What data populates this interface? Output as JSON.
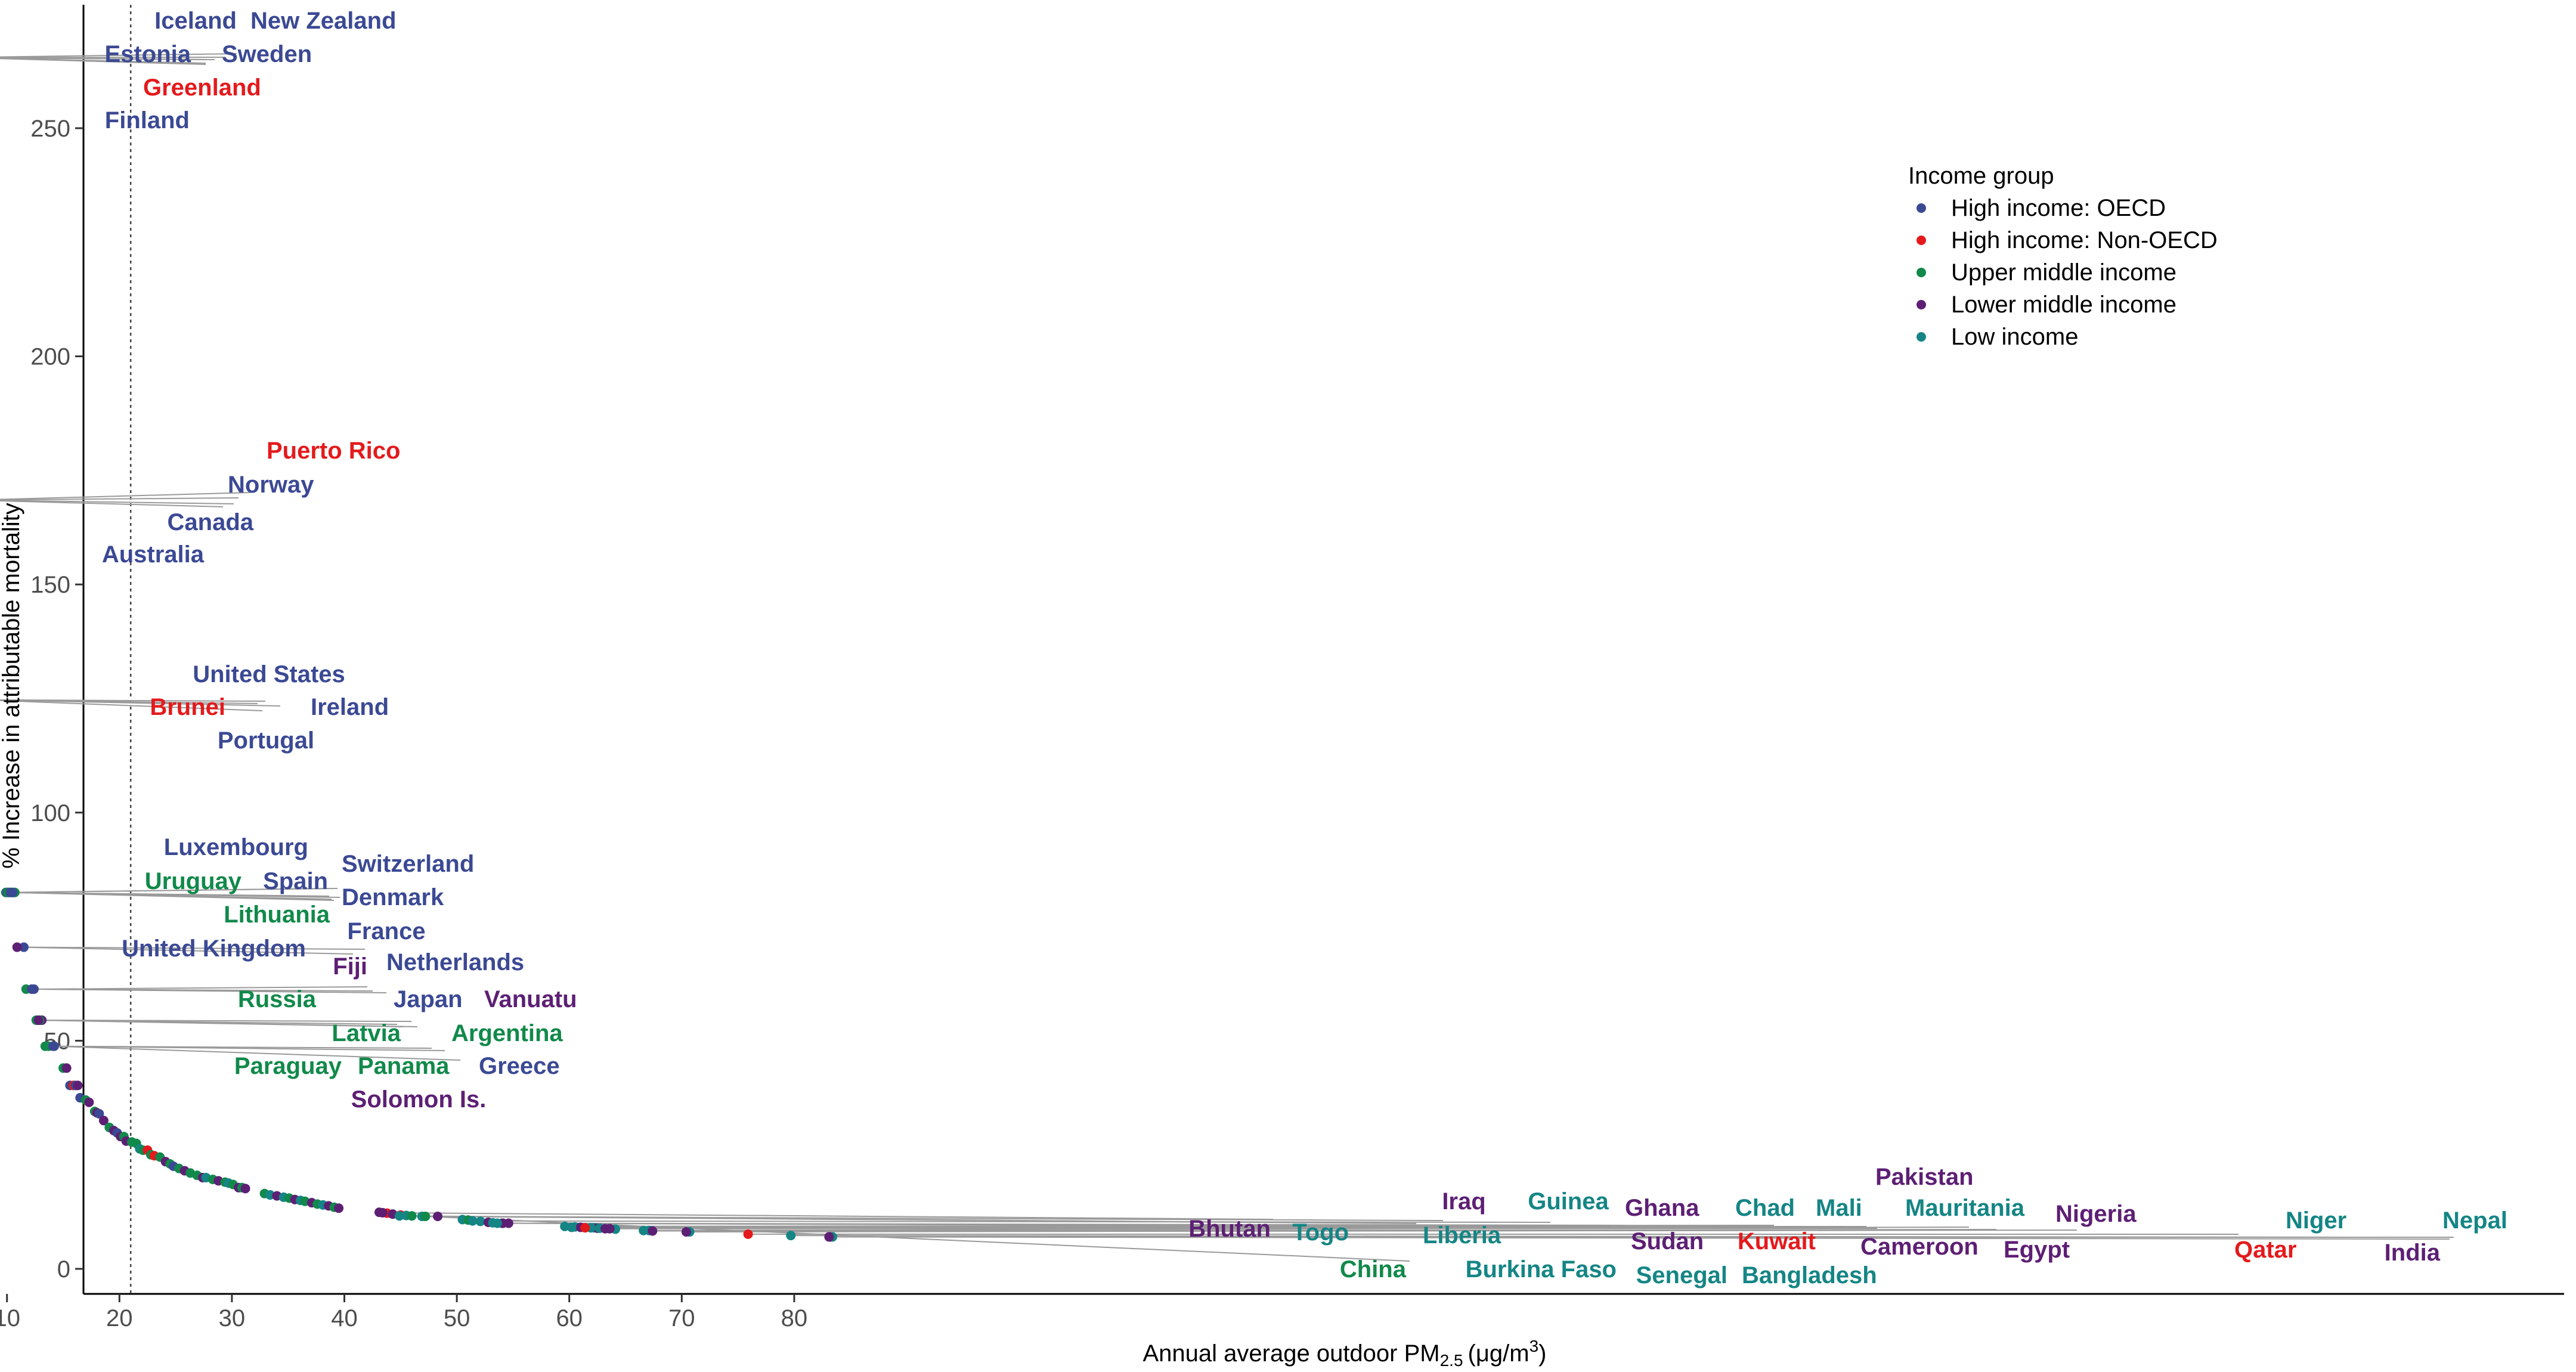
{
  "chart_data": {
    "type": "scatter",
    "title": "",
    "xlabel": "Annual average outdoor PM",
    "xlabel_sub": "2.5",
    "xlabel_unit": "(μg/m",
    "xlabel_unit_sup": "3",
    "xlabel_unit_close": ")",
    "ylabel": "% Increase in attributable mortality",
    "xlim": [
      1,
      86
    ],
    "ylim": [
      -6,
      278
    ],
    "x_ticks": [
      10,
      20,
      30,
      40,
      50,
      60,
      70,
      80
    ],
    "y_ticks": [
      0,
      50,
      100,
      150,
      200,
      250
    ],
    "reference_line_x": 21,
    "grid": false,
    "legend": {
      "title": "Income group",
      "placement": "top-right",
      "entries": [
        {
          "key": "oecd",
          "label": "High income: OECD",
          "color": "#3b4994"
        },
        {
          "key": "nonoecd",
          "label": "High income: Non-OECD",
          "color": "#e41a1c"
        },
        {
          "key": "upper",
          "label": "Upper middle income",
          "color": "#11894a"
        },
        {
          "key": "lower",
          "label": "Lower middle income",
          "color": "#5d1f74"
        },
        {
          "key": "low",
          "label": "Low income",
          "color": "#158585"
        }
      ]
    },
    "labeled_points": [
      {
        "name": "Iceland",
        "group": "oecd",
        "x": 6.0,
        "y": 265.5
      },
      {
        "name": "New Zealand",
        "group": "oecd",
        "x": 6.6,
        "y": 265.5
      },
      {
        "name": "Estonia",
        "group": "oecd",
        "x": 5.6,
        "y": 265.5
      },
      {
        "name": "Sweden",
        "group": "oecd",
        "x": 6.4,
        "y": 265.5
      },
      {
        "name": "Greenland",
        "group": "nonoecd",
        "x": 6.2,
        "y": 265.5
      },
      {
        "name": "Finland",
        "group": "oecd",
        "x": 5.8,
        "y": 265.5
      },
      {
        "name": "Puerto Rico",
        "group": "nonoecd",
        "x": 7.3,
        "y": 168.5
      },
      {
        "name": "Norway",
        "group": "oecd",
        "x": 7.0,
        "y": 168.5
      },
      {
        "name": "Canada",
        "group": "oecd",
        "x": 6.9,
        "y": 168.5
      },
      {
        "name": "Australia",
        "group": "oecd",
        "x": 6.6,
        "y": 168.5
      },
      {
        "name": "United States",
        "group": "oecd",
        "x": 8.1,
        "y": 124.7
      },
      {
        "name": "Brunei",
        "group": "nonoecd",
        "x": 8.0,
        "y": 124.7
      },
      {
        "name": "Ireland",
        "group": "oecd",
        "x": 8.3,
        "y": 124.7
      },
      {
        "name": "Portugal",
        "group": "oecd",
        "x": 7.9,
        "y": 124.7
      },
      {
        "name": "Luxembourg",
        "group": "oecd",
        "x": 10.2,
        "y": 82.5
      },
      {
        "name": "Switzerland",
        "group": "oecd",
        "x": 10.4,
        "y": 82.5
      },
      {
        "name": "Uruguay",
        "group": "upper",
        "x": 9.9,
        "y": 82.5
      },
      {
        "name": "Spain",
        "group": "oecd",
        "x": 10.0,
        "y": 82.5
      },
      {
        "name": "Denmark",
        "group": "oecd",
        "x": 10.5,
        "y": 82.5
      },
      {
        "name": "Lithuania",
        "group": "upper",
        "x": 10.1,
        "y": 82.5
      },
      {
        "name": "United Kingdom",
        "group": "oecd",
        "x": 10.3,
        "y": 82.5
      },
      {
        "name": "France",
        "group": "oecd",
        "x": 11.5,
        "y": 70.5
      },
      {
        "name": "Fiji",
        "group": "lower",
        "x": 10.9,
        "y": 70.5
      },
      {
        "name": "Netherlands",
        "group": "oecd",
        "x": 12.4,
        "y": 61.3
      },
      {
        "name": "Russia",
        "group": "upper",
        "x": 11.7,
        "y": 61.3
      },
      {
        "name": "Japan",
        "group": "oecd",
        "x": 12.2,
        "y": 61.3
      },
      {
        "name": "Vanuatu",
        "group": "lower",
        "x": 13.1,
        "y": 54.5
      },
      {
        "name": "Latvia",
        "group": "upper",
        "x": 12.6,
        "y": 54.5
      },
      {
        "name": "Argentina",
        "group": "upper",
        "x": 13.4,
        "y": 48.8
      },
      {
        "name": "Paraguay",
        "group": "upper",
        "x": 12.9,
        "y": 54.5
      },
      {
        "name": "Panama",
        "group": "upper",
        "x": 13.7,
        "y": 48.8
      },
      {
        "name": "Greece",
        "group": "oecd",
        "x": 14.1,
        "y": 48.8
      },
      {
        "name": "Solomon Is.",
        "group": "lower",
        "x": 12.8,
        "y": 54.5
      },
      {
        "name": "Bhutan",
        "group": "lower",
        "x": 43.4,
        "y": 12.3
      },
      {
        "name": "Togo",
        "group": "low",
        "x": 44.9,
        "y": 11.6
      },
      {
        "name": "Iraq",
        "group": "lower",
        "x": 48.3,
        "y": 11.5
      },
      {
        "name": "Liberia",
        "group": "low",
        "x": 46.9,
        "y": 11.5
      },
      {
        "name": "China",
        "group": "upper",
        "x": 47.2,
        "y": 11.5
      },
      {
        "name": "Guinea",
        "group": "low",
        "x": 51.4,
        "y": 10.5
      },
      {
        "name": "Ghana",
        "group": "lower",
        "x": 54.6,
        "y": 10.0
      },
      {
        "name": "Sudan",
        "group": "lower",
        "x": 54.1,
        "y": 10.0
      },
      {
        "name": "Burkina Faso",
        "group": "low",
        "x": 53.6,
        "y": 10.0
      },
      {
        "name": "Chad",
        "group": "low",
        "x": 59.6,
        "y": 9.3
      },
      {
        "name": "Mali",
        "group": "low",
        "x": 61.9,
        "y": 9.0
      },
      {
        "name": "Kuwait",
        "group": "nonoecd",
        "x": 61.4,
        "y": 9.0
      },
      {
        "name": "Senegal",
        "group": "low",
        "x": 60.2,
        "y": 9.1
      },
      {
        "name": "Bangladesh",
        "group": "low",
        "x": 62.7,
        "y": 8.9
      },
      {
        "name": "Pakistan",
        "group": "lower",
        "x": 63.2,
        "y": 8.8
      },
      {
        "name": "Mauritania",
        "group": "low",
        "x": 66.6,
        "y": 8.4
      },
      {
        "name": "Cameroon",
        "group": "lower",
        "x": 63.6,
        "y": 8.8
      },
      {
        "name": "Egypt",
        "group": "lower",
        "x": 67.4,
        "y": 8.3
      },
      {
        "name": "Nigeria",
        "group": "lower",
        "x": 70.4,
        "y": 8.1
      },
      {
        "name": "Qatar",
        "group": "nonoecd",
        "x": 75.9,
        "y": 7.6
      },
      {
        "name": "Niger",
        "group": "low",
        "x": 79.7,
        "y": 7.3
      },
      {
        "name": "Nepal",
        "group": "low",
        "x": 83.4,
        "y": 7.0
      },
      {
        "name": "India",
        "group": "lower",
        "x": 83.1,
        "y": 7.0
      }
    ],
    "other_points": [
      {
        "group": "low",
        "x": 7.4,
        "y": 168.5
      },
      {
        "group": "upper",
        "x": 10.6,
        "y": 82.5
      },
      {
        "group": "upper",
        "x": 10.7,
        "y": 82.5
      },
      {
        "group": "oecd",
        "x": 14.2,
        "y": 48.8
      },
      {
        "group": "upper",
        "x": 15.0,
        "y": 44.0
      },
      {
        "group": "lower",
        "x": 15.3,
        "y": 44.0
      },
      {
        "group": "oecd",
        "x": 15.6,
        "y": 40.2
      },
      {
        "group": "nonoecd",
        "x": 15.9,
        "y": 40.2
      },
      {
        "group": "oecd",
        "x": 16.1,
        "y": 40.2
      },
      {
        "group": "lower",
        "x": 16.3,
        "y": 40.2
      },
      {
        "group": "oecd",
        "x": 16.5,
        "y": 37.5
      },
      {
        "group": "upper",
        "x": 17.0,
        "y": 37.0
      },
      {
        "group": "lower",
        "x": 17.3,
        "y": 36.5
      },
      {
        "group": "upper",
        "x": 17.8,
        "y": 34.5
      },
      {
        "group": "lower",
        "x": 18.0,
        "y": 34.2
      },
      {
        "group": "oecd",
        "x": 18.2,
        "y": 34.0
      },
      {
        "group": "lower",
        "x": 18.6,
        "y": 32.5
      },
      {
        "group": "upper",
        "x": 19.1,
        "y": 31.0
      },
      {
        "group": "lower",
        "x": 19.5,
        "y": 30.3
      },
      {
        "group": "oecd",
        "x": 19.8,
        "y": 29.8
      },
      {
        "group": "lower",
        "x": 20.1,
        "y": 29.0
      },
      {
        "group": "upper",
        "x": 20.4,
        "y": 29.0
      },
      {
        "group": "lower",
        "x": 20.6,
        "y": 28.0
      },
      {
        "group": "upper",
        "x": 21.1,
        "y": 27.8
      },
      {
        "group": "upper",
        "x": 21.5,
        "y": 27.5
      },
      {
        "group": "low",
        "x": 21.8,
        "y": 26.3
      },
      {
        "group": "upper",
        "x": 22.1,
        "y": 26.0
      },
      {
        "group": "nonoecd",
        "x": 22.5,
        "y": 26.0
      },
      {
        "group": "upper",
        "x": 22.8,
        "y": 25.0
      },
      {
        "group": "nonoecd",
        "x": 23.1,
        "y": 24.8
      },
      {
        "group": "upper",
        "x": 23.6,
        "y": 24.5
      },
      {
        "group": "lower",
        "x": 24.1,
        "y": 23.5
      },
      {
        "group": "upper",
        "x": 24.5,
        "y": 23.0
      },
      {
        "group": "oecd",
        "x": 24.8,
        "y": 22.5
      },
      {
        "group": "upper",
        "x": 25.3,
        "y": 22.0
      },
      {
        "group": "lower",
        "x": 25.8,
        "y": 21.5
      },
      {
        "group": "upper",
        "x": 26.3,
        "y": 21.0
      },
      {
        "group": "upper",
        "x": 26.9,
        "y": 20.5
      },
      {
        "group": "lower",
        "x": 27.4,
        "y": 20.0
      },
      {
        "group": "low",
        "x": 27.7,
        "y": 20.0
      },
      {
        "group": "upper",
        "x": 28.3,
        "y": 19.6
      },
      {
        "group": "lower",
        "x": 28.8,
        "y": 19.3
      },
      {
        "group": "upper",
        "x": 29.4,
        "y": 19.0
      },
      {
        "group": "low",
        "x": 29.7,
        "y": 18.8
      },
      {
        "group": "upper",
        "x": 30.1,
        "y": 18.5
      },
      {
        "group": "lower",
        "x": 30.6,
        "y": 17.8
      },
      {
        "group": "upper",
        "x": 30.9,
        "y": 17.8
      },
      {
        "group": "lower",
        "x": 31.2,
        "y": 17.6
      },
      {
        "group": "upper",
        "x": 32.9,
        "y": 16.5
      },
      {
        "group": "low",
        "x": 33.4,
        "y": 16.2
      },
      {
        "group": "lower",
        "x": 34.0,
        "y": 16.0
      },
      {
        "group": "low",
        "x": 34.6,
        "y": 15.7
      },
      {
        "group": "upper",
        "x": 35.1,
        "y": 15.5
      },
      {
        "group": "lower",
        "x": 35.6,
        "y": 15.2
      },
      {
        "group": "low",
        "x": 36.1,
        "y": 15.0
      },
      {
        "group": "upper",
        "x": 36.5,
        "y": 14.8
      },
      {
        "group": "lower",
        "x": 37.1,
        "y": 14.5
      },
      {
        "group": "upper",
        "x": 37.6,
        "y": 14.2
      },
      {
        "group": "low",
        "x": 38.1,
        "y": 14.0
      },
      {
        "group": "lower",
        "x": 38.6,
        "y": 13.8
      },
      {
        "group": "upper",
        "x": 39.1,
        "y": 13.5
      },
      {
        "group": "lower",
        "x": 39.5,
        "y": 13.3
      },
      {
        "group": "lower",
        "x": 43.1,
        "y": 12.4
      },
      {
        "group": "nonoecd",
        "x": 43.8,
        "y": 12.2
      },
      {
        "group": "lower",
        "x": 44.3,
        "y": 12.0
      },
      {
        "group": "nonoecd",
        "x": 45.0,
        "y": 11.8
      },
      {
        "group": "low",
        "x": 45.5,
        "y": 11.7
      },
      {
        "group": "upper",
        "x": 46.0,
        "y": 11.6
      },
      {
        "group": "low",
        "x": 50.5,
        "y": 10.8
      },
      {
        "group": "upper",
        "x": 51.0,
        "y": 10.7
      },
      {
        "group": "low",
        "x": 52.1,
        "y": 10.4
      },
      {
        "group": "lower",
        "x": 52.8,
        "y": 10.2
      },
      {
        "group": "low",
        "x": 53.2,
        "y": 10.1
      },
      {
        "group": "low",
        "x": 54.0,
        "y": 10.0
      },
      {
        "group": "low",
        "x": 60.5,
        "y": 9.2
      },
      {
        "group": "lower",
        "x": 61.0,
        "y": 9.1
      },
      {
        "group": "low",
        "x": 62.2,
        "y": 9.0
      },
      {
        "group": "lower",
        "x": 62.5,
        "y": 8.9
      },
      {
        "group": "low",
        "x": 64.1,
        "y": 8.7
      },
      {
        "group": "low",
        "x": 67.1,
        "y": 8.4
      },
      {
        "group": "low",
        "x": 70.7,
        "y": 8.1
      },
      {
        "group": "lower",
        "x": 83.2,
        "y": 7.0
      }
    ]
  }
}
